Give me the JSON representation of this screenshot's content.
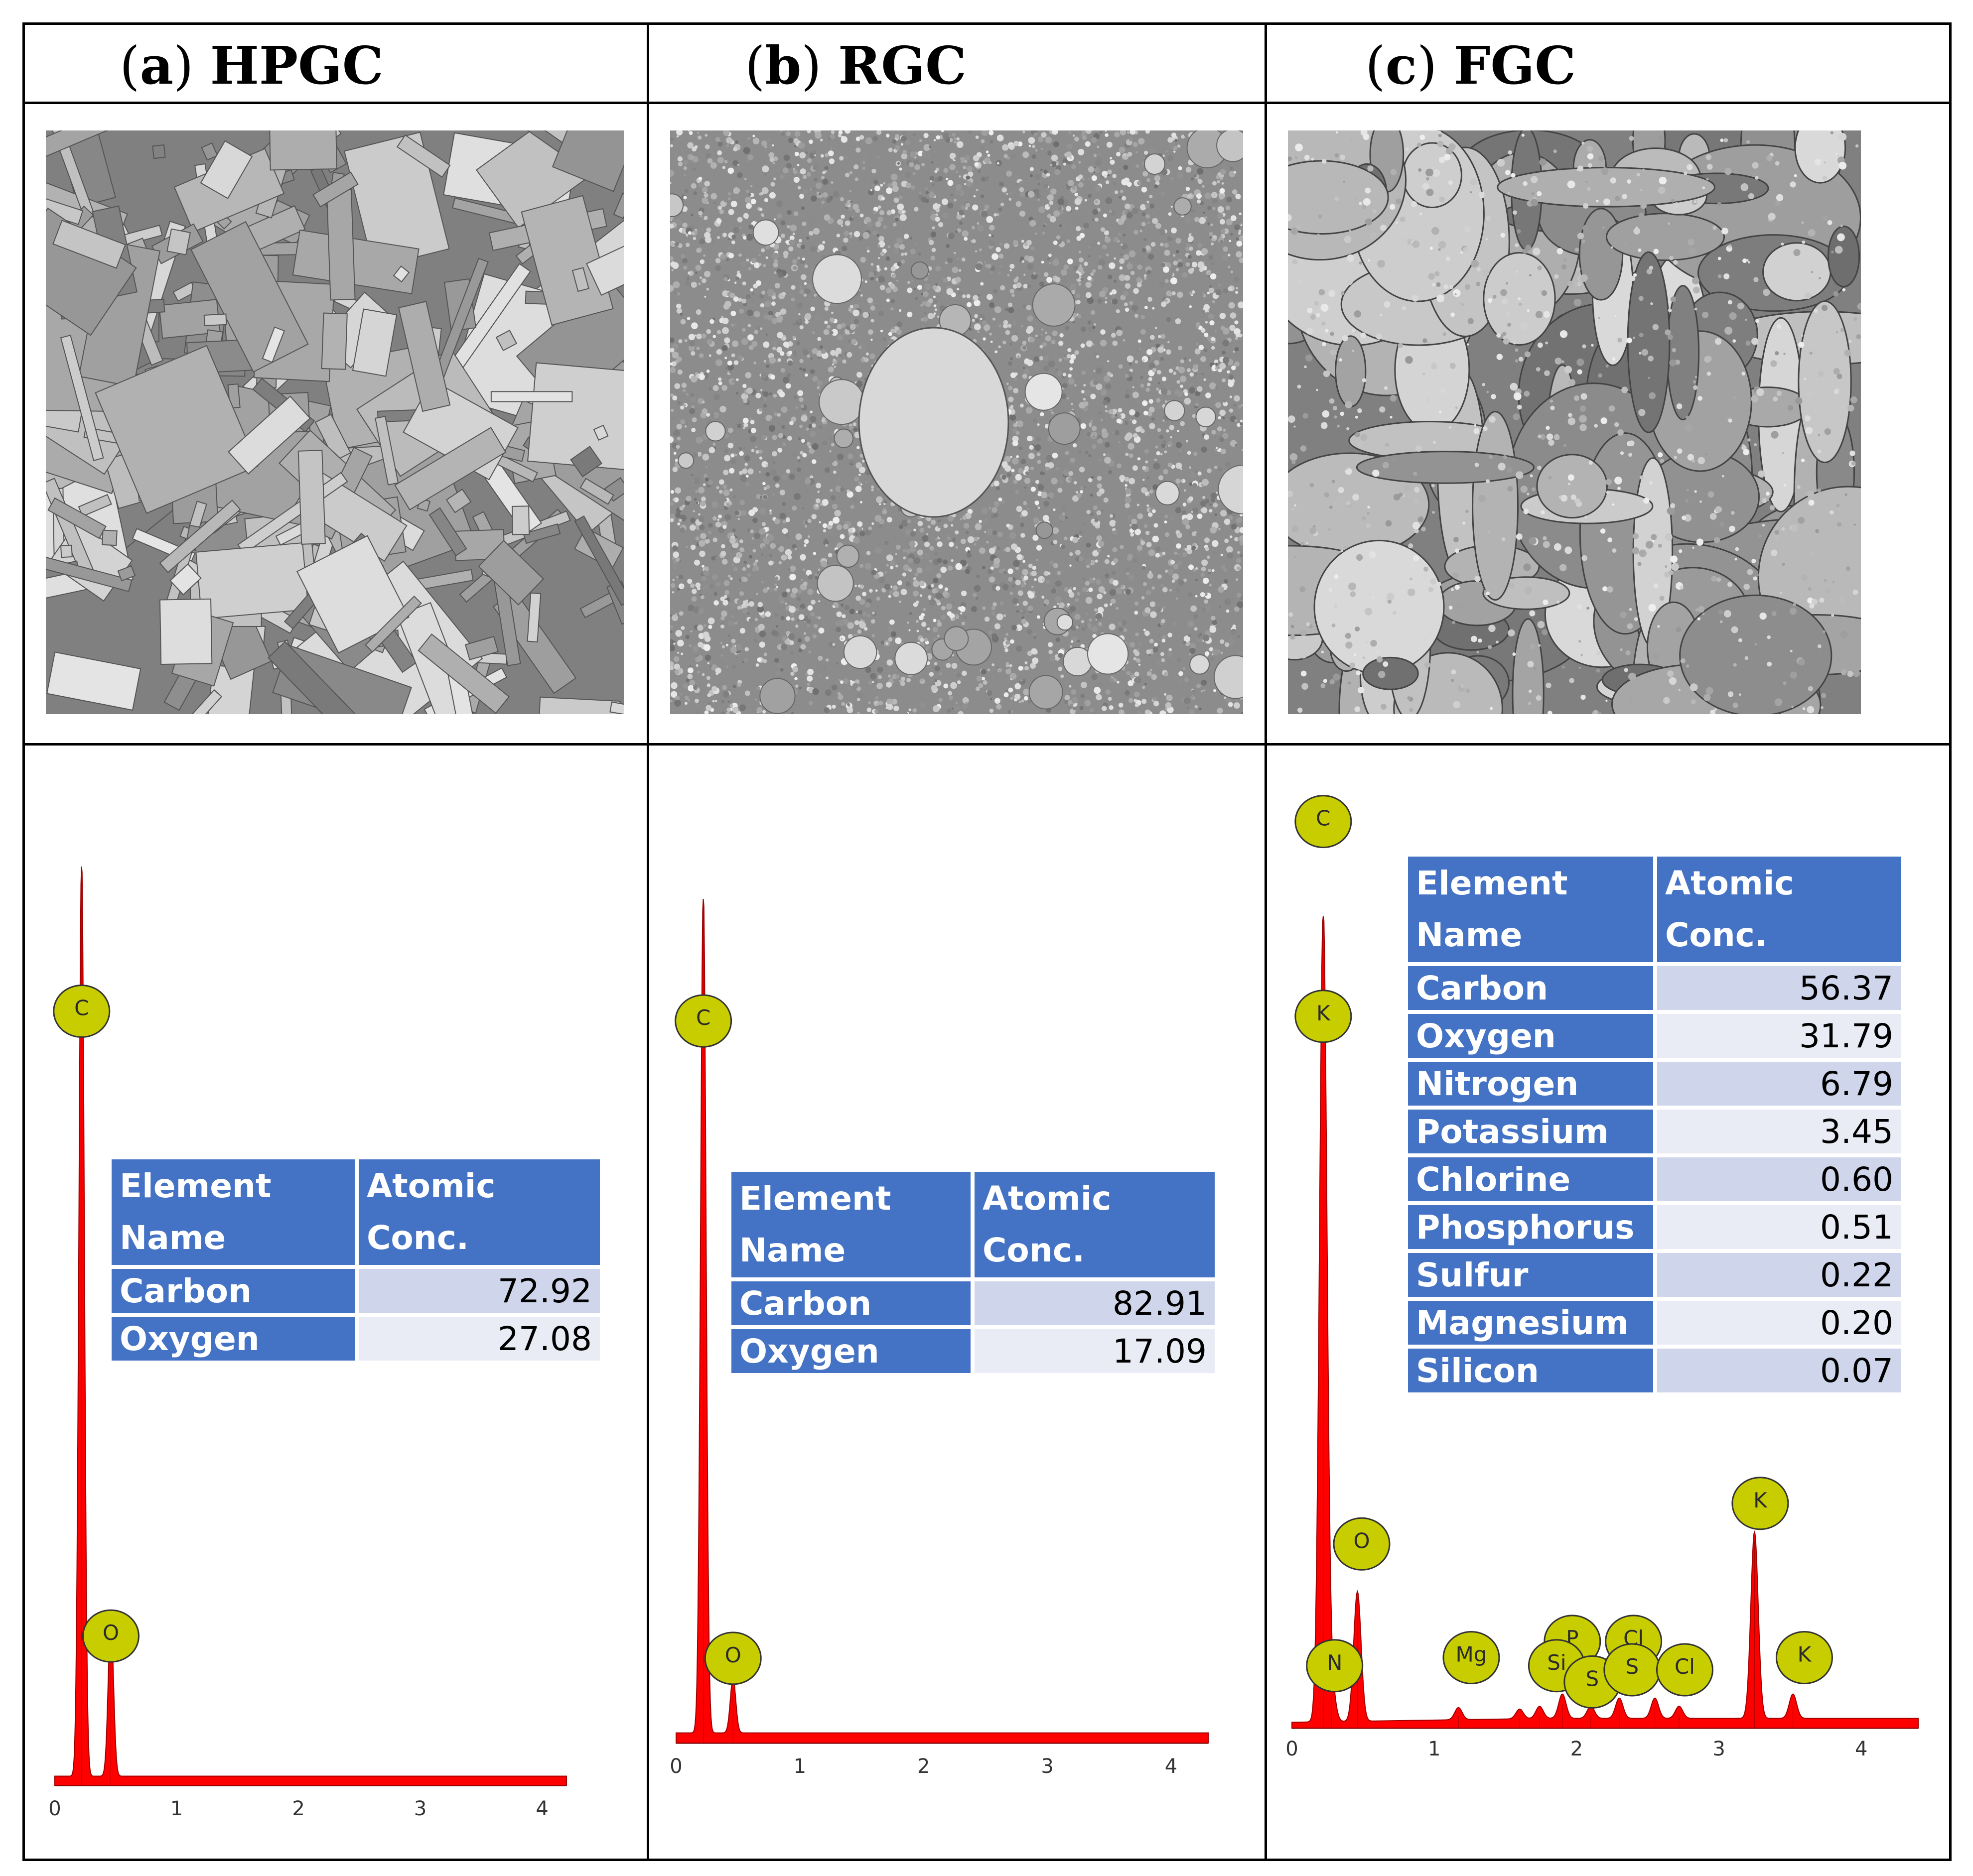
{
  "panels": [
    {
      "id": "hpgc",
      "label_letter": "a",
      "label_name": "HPGC",
      "sem_image": "sem-micrograph-rectangular-crystals",
      "table": {
        "header": [
          "Element Name",
          "Atomic Conc."
        ],
        "rows": [
          {
            "element": "Carbon",
            "conc": "72.92"
          },
          {
            "element": "Oxygen",
            "conc": "27.08"
          }
        ]
      }
    },
    {
      "id": "rgc",
      "label_letter": "b",
      "label_name": "RGC",
      "sem_image": "sem-micrograph-fine-granules",
      "table": {
        "header": [
          "Element Name",
          "Atomic Conc."
        ],
        "rows": [
          {
            "element": "Carbon",
            "conc": "82.91"
          },
          {
            "element": "Oxygen",
            "conc": "17.09"
          }
        ]
      }
    },
    {
      "id": "fgc",
      "label_letter": "c",
      "label_name": "FGC",
      "sem_image": "sem-micrograph-agglomerated-particles",
      "table": {
        "header": [
          "Element Name",
          "Atomic Conc."
        ],
        "rows": [
          {
            "element": "Carbon",
            "conc": "56.37"
          },
          {
            "element": "Oxygen",
            "conc": "31.79"
          },
          {
            "element": "Nitrogen",
            "conc": "6.79"
          },
          {
            "element": "Potassium",
            "conc": "3.45"
          },
          {
            "element": "Chlorine",
            "conc": "0.60"
          },
          {
            "element": "Phosphorus",
            "conc": "0.51"
          },
          {
            "element": "Sulfur",
            "conc": "0.22"
          },
          {
            "element": "Magnesium",
            "conc": "0.20"
          },
          {
            "element": "Silicon",
            "conc": "0.07"
          }
        ]
      }
    }
  ],
  "colors": {
    "spectrum_fill": "#ff0000",
    "peak_marker": "#c8cd00",
    "table_header": "#4472c4",
    "table_row_odd": "#cfd5ea",
    "table_row_even": "#e9ebf5"
  },
  "chart_data": [
    {
      "type": "area",
      "panel": "hpgc",
      "xlabel": "",
      "ylabel": "",
      "xlim": [
        0,
        4.2
      ],
      "xticks": [
        0,
        1,
        2,
        3,
        4
      ],
      "ylim": [
        0,
        1
      ],
      "baseline": 0.01,
      "peaks": [
        {
          "element": "C",
          "x": 0.22,
          "y": 1.0
        },
        {
          "element": "O",
          "x": 0.46,
          "y": 0.17
        }
      ]
    },
    {
      "type": "area",
      "panel": "rgc",
      "xlabel": "",
      "ylabel": "",
      "xlim": [
        0,
        4.3
      ],
      "xticks": [
        0,
        1,
        2,
        3,
        4
      ],
      "ylim": [
        0,
        1
      ],
      "baseline": 0.012,
      "peaks": [
        {
          "element": "C",
          "x": 0.22,
          "y": 1.0
        },
        {
          "element": "O",
          "x": 0.46,
          "y": 0.065
        }
      ]
    },
    {
      "type": "area",
      "panel": "fgc",
      "xlabel": "",
      "ylabel": "",
      "xlim": [
        0,
        4.4
      ],
      "xticks": [
        0,
        1,
        2,
        3,
        4
      ],
      "ylim": [
        0,
        1
      ],
      "baseline": 0.012,
      "peaks": [
        {
          "element": "C",
          "x": 0.22,
          "y": 1.0
        },
        {
          "element": "N",
          "x": 0.28,
          "y": 0.04
        },
        {
          "element": "O",
          "x": 0.46,
          "y": 0.16
        },
        {
          "element": "Mg",
          "x": 1.17,
          "y": 0.015
        },
        {
          "element": "Si",
          "x": 1.6,
          "y": 0.012
        },
        {
          "element": "Si",
          "x": 1.74,
          "y": 0.015
        },
        {
          "element": "P",
          "x": 1.9,
          "y": 0.03
        },
        {
          "element": "S",
          "x": 2.1,
          "y": 0.015
        },
        {
          "element": "S",
          "x": 2.3,
          "y": 0.025
        },
        {
          "element": "Cl",
          "x": 2.55,
          "y": 0.025
        },
        {
          "element": "Cl",
          "x": 2.72,
          "y": 0.015
        },
        {
          "element": "K",
          "x": 3.25,
          "y": 0.23
        },
        {
          "element": "K",
          "x": 3.52,
          "y": 0.03
        }
      ],
      "peak_labels": [
        {
          "element": "C"
        },
        {
          "element": "K"
        },
        {
          "element": "O"
        },
        {
          "element": "N"
        },
        {
          "element": "Mg"
        },
        {
          "element": "P"
        },
        {
          "element": "Cl"
        },
        {
          "element": "Si"
        },
        {
          "element": "S"
        },
        {
          "element": "S"
        },
        {
          "element": "Cl"
        },
        {
          "element": "K"
        },
        {
          "element": "K"
        }
      ]
    }
  ]
}
